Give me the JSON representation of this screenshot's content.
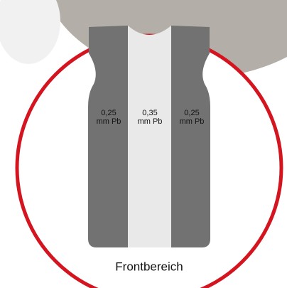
{
  "panels": [
    {
      "thickness": "0,25",
      "unit": "mm Pb"
    },
    {
      "thickness": "0,35",
      "unit": "mm Pb"
    },
    {
      "thickness": "0,25",
      "unit": "mm Pb"
    }
  ],
  "caption": "Frontbereich"
}
